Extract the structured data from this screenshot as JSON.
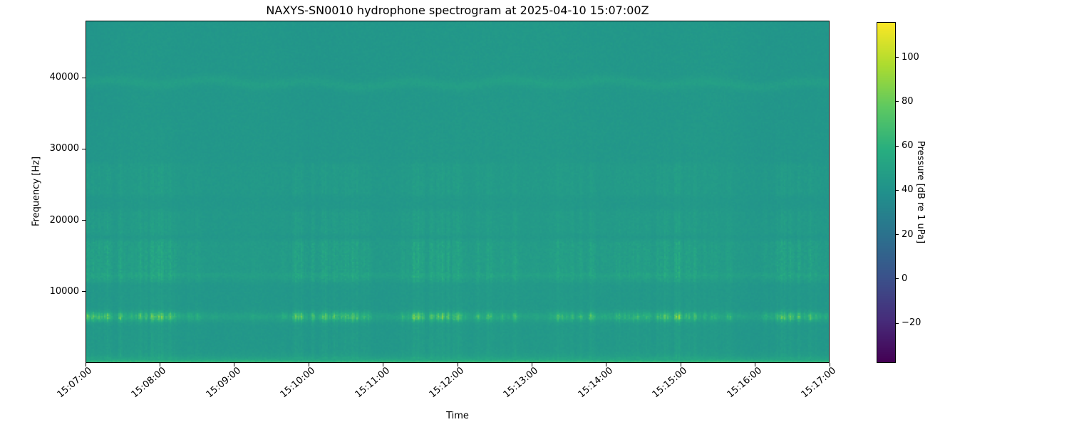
{
  "chart_data": {
    "type": "heatmap",
    "subtype": "spectrogram",
    "title": "NAXYS-SN0010 hydrophone spectrogram at 2025-04-10 15:07:00Z",
    "xlabel": "Time",
    "ylabel": "Frequency [Hz]",
    "x_tick_labels": [
      "15:07:00",
      "15:08:00",
      "15:09:00",
      "15:10:00",
      "15:11:00",
      "15:12:00",
      "15:13:00",
      "15:14:00",
      "15:15:00",
      "15:16:00",
      "15:17:00"
    ],
    "x_range": {
      "start": "15:07:00",
      "end": "15:17:00",
      "duration_minutes": 10
    },
    "y_ticks_hz": [
      10000,
      20000,
      30000,
      40000
    ],
    "y_tick_labels": [
      "10000",
      "20000",
      "30000",
      "40000"
    ],
    "freq_range_hz": [
      0,
      48000
    ],
    "grid": false,
    "colormap": "viridis",
    "colorbar": {
      "label": "Pressure [dB re 1 uPa]",
      "ticks": [
        100,
        80,
        60,
        40,
        20,
        0,
        -20
      ],
      "tick_labels": [
        "100",
        "80",
        "60",
        "40",
        "20",
        "0",
        "−20"
      ],
      "vmin": -38,
      "vmax": 116,
      "position": "right"
    },
    "spectrogram": {
      "background_level_db": 43,
      "noise_db": 1.5,
      "column_modulation_db": 1.2,
      "time_bins": 522,
      "freq_bins": 240,
      "features": [
        {
          "kind": "low-frequency-band",
          "f_max_hz": 1500,
          "peak_db": 28,
          "decay_hz": 450
        },
        {
          "kind": "click-band",
          "center_hz": 6500,
          "sigma_hz": 450,
          "base_db": 6,
          "burst_db": 34
        },
        {
          "kind": "speckle-band",
          "f_lo_hz": 11800,
          "f_hi_hz": 16800,
          "max_db": 14
        },
        {
          "kind": "speckle-band",
          "f_lo_hz": 18500,
          "f_hi_hz": 21000,
          "max_db": 7
        },
        {
          "kind": "speckle-band",
          "f_lo_hz": 24000,
          "f_hi_hz": 27500,
          "max_db": 6
        },
        {
          "kind": "tonal-line",
          "center_hz": 39200,
          "sigma_hz": 500,
          "db": 4.5,
          "wavy": true
        },
        {
          "kind": "tonal-line",
          "center_hz": 12300,
          "sigma_hz": 250,
          "db": 3,
          "wavy": false
        },
        {
          "kind": "broadband-clicks",
          "f_lo_hz": 500,
          "f_hi_hz": 34000,
          "max_db": 6,
          "decay_hz": 18000
        }
      ]
    }
  }
}
